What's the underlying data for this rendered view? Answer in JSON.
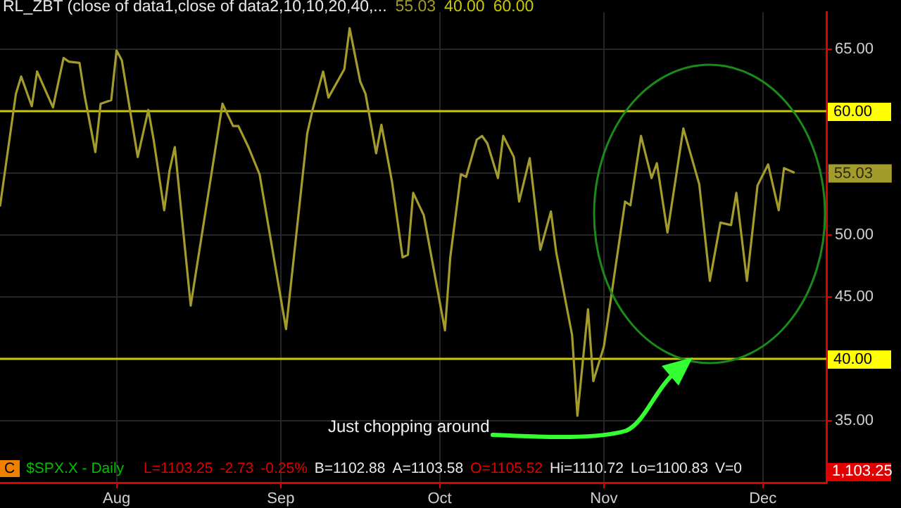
{
  "chart_data": {
    "type": "line",
    "title": "RL_ZBT (close of data1,close of data2,10,10,20,40,...",
    "x": [
      "--07-10",
      "--07-13",
      "--07-14",
      "--07-16",
      "--07-17",
      "--07-20",
      "--07-22",
      "--07-23",
      "--07-25",
      "--07-26",
      "--07-28",
      "--07-29",
      "--07-31",
      "--08-01",
      "--08-02",
      "--08-05",
      "--08-07",
      "--08-08",
      "--08-10",
      "--08-11",
      "--08-12",
      "--08-15",
      "--08-21",
      "--08-23",
      "--08-24",
      "--08-26",
      "--08-28",
      "--09-02",
      "--09-06",
      "--09-07",
      "--09-09",
      "--09-10",
      "--09-13",
      "--09-14",
      "--09-16",
      "--09-17",
      "--09-19",
      "--09-20",
      "--09-22",
      "--09-24",
      "--09-25",
      "--09-26",
      "--09-28",
      "--10-02",
      "--10-03",
      "--10-05",
      "--10-06",
      "--10-08",
      "--10-09",
      "--10-10",
      "--10-12",
      "--10-13",
      "--10-15",
      "--10-16",
      "--10-18",
      "--10-20",
      "--10-22",
      "--10-23",
      "--10-26",
      "--10-27",
      "--10-29",
      "--10-30",
      "--11-01",
      "--11-05",
      "--11-06",
      "--11-08",
      "--11-10",
      "--11-11",
      "--11-13",
      "--11-16",
      "--11-19",
      "--11-21",
      "--11-23",
      "--11-25",
      "--11-26",
      "--11-28",
      "--11-30",
      "--12-02",
      "--12-04",
      "--12-05",
      "--12-07"
    ],
    "series": [
      {
        "color": "#a39b2b",
        "values": [
          52.3,
          61.4,
          62.8,
          60.4,
          63.2,
          60.3,
          64.3,
          64.0,
          63.9,
          61.2,
          56.7,
          60.6,
          60.9,
          64.9,
          64.1,
          56.3,
          60.1,
          57.7,
          52.0,
          55.2,
          57.1,
          44.3,
          60.6,
          58.8,
          58.8,
          57.0,
          54.9,
          42.4,
          58.2,
          60.1,
          63.2,
          61.1,
          63.4,
          66.7,
          62.4,
          61.4,
          56.6,
          58.9,
          54.3,
          48.2,
          48.4,
          53.4,
          51.6,
          42.3,
          48.2,
          54.9,
          54.7,
          57.7,
          58.0,
          57.4,
          54.6,
          58.0,
          56.3,
          52.7,
          56.2,
          48.8,
          51.9,
          48.6,
          41.9,
          35.4,
          44.0,
          38.2,
          41.0,
          52.7,
          52.4,
          58.0,
          54.6,
          55.8,
          50.2,
          58.6,
          54.1,
          46.3,
          51.0,
          50.8,
          53.4,
          46.3,
          54.0,
          55.7,
          52.0,
          55.4,
          55.03
        ]
      }
    ],
    "xlim": [
      "--07-10",
      "--12-13"
    ],
    "xticks": [
      {
        "value": "--08-01",
        "label": "Aug"
      },
      {
        "value": "--09-01",
        "label": "Sep"
      },
      {
        "value": "--10-01",
        "label": "Oct"
      },
      {
        "value": "--11-01",
        "label": "Nov"
      },
      {
        "value": "--12-01",
        "label": "Dec"
      }
    ],
    "ylim": [
      30,
      68
    ],
    "yticks": [
      {
        "value": 35,
        "label": "35.00"
      },
      {
        "value": 45,
        "label": "45.00"
      },
      {
        "value": 50,
        "label": "50.00"
      },
      {
        "value": 55,
        "label": null
      },
      {
        "value": 65,
        "label": "65.00"
      }
    ],
    "ref_lines": [
      {
        "axis": "y",
        "value": 60,
        "label": "60.00",
        "color": "#c8c800"
      },
      {
        "axis": "y",
        "value": 40,
        "label": "40.00",
        "color": "#c8c800"
      }
    ],
    "annotations": [
      "55.03",
      "40.00",
      "60.00",
      {
        "text": "55.03",
        "x": "--12-07",
        "y": 55.03
      },
      "Just chopping around",
      "C",
      "$SPX.X - Daily",
      "L=1103.25",
      "-2.73",
      "-0.25%",
      "B=1102.88",
      "A=1103.58",
      "O=1105.52",
      "Hi=1110.72",
      "Lo=1100.83",
      "V=0",
      "1,103.25"
    ],
    "grid": true,
    "legend": false,
    "marker": "none",
    "line_style": "solid"
  }
}
